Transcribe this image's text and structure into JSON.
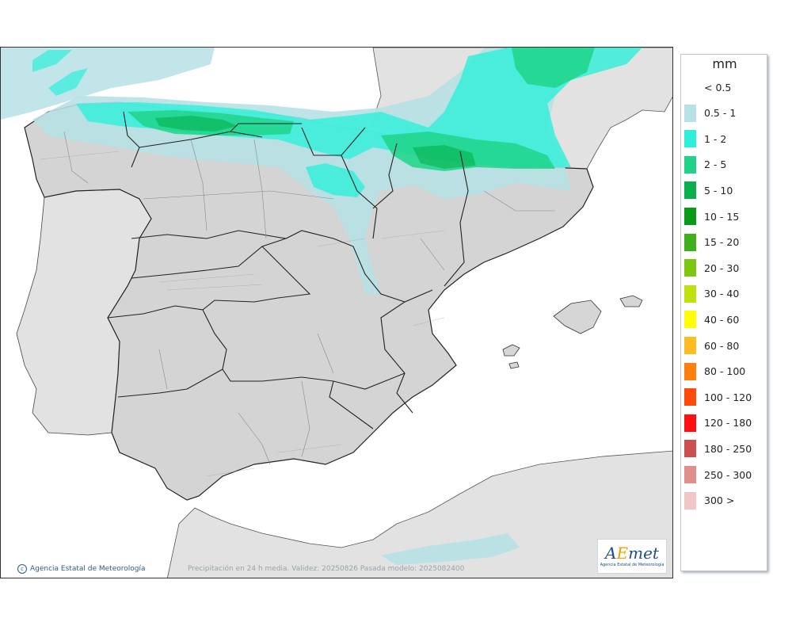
{
  "map": {
    "validity_text": "Precipitación en 24 h media. Validez: 20250826 Pasada modelo: 2025082400",
    "copyright_text": "Agencia Estatal de Meteorología",
    "logo": {
      "word": "AEmet",
      "subtitle": "Agencia Estatal de Meteorología"
    },
    "colors": {
      "sea": "#ffffff",
      "land_other": "#e2e2e2",
      "land_relief": "#d4d4d4",
      "borders": "#222222"
    }
  },
  "legend": {
    "unit": "mm",
    "items": [
      {
        "label": "< 0.5",
        "color": ""
      },
      {
        "label": "0.5 - 1",
        "color": "#b7e1e6"
      },
      {
        "label": "1 - 2",
        "color": "#2ef0d8"
      },
      {
        "label": "2 - 5",
        "color": "#1fd48a"
      },
      {
        "label": "5 - 10",
        "color": "#08b04c"
      },
      {
        "label": "10 - 15",
        "color": "#0a9a1a"
      },
      {
        "label": "15 - 20",
        "color": "#3fb01a"
      },
      {
        "label": "20 - 30",
        "color": "#7bc80e"
      },
      {
        "label": "30 - 40",
        "color": "#c0e010"
      },
      {
        "label": "40 - 60",
        "color": "#ffff00"
      },
      {
        "label": "60 - 80",
        "color": "#ffbb22"
      },
      {
        "label": "80 - 100",
        "color": "#ff7f0e"
      },
      {
        "label": "100 - 120",
        "color": "#ff4a0a"
      },
      {
        "label": "120 - 180",
        "color": "#ff1010"
      },
      {
        "label": "180 - 250",
        "color": "#cd5050"
      },
      {
        "label": "250 - 300",
        "color": "#e08e8e"
      },
      {
        "label": "300 >",
        "color": "#f0c6c6"
      }
    ]
  }
}
